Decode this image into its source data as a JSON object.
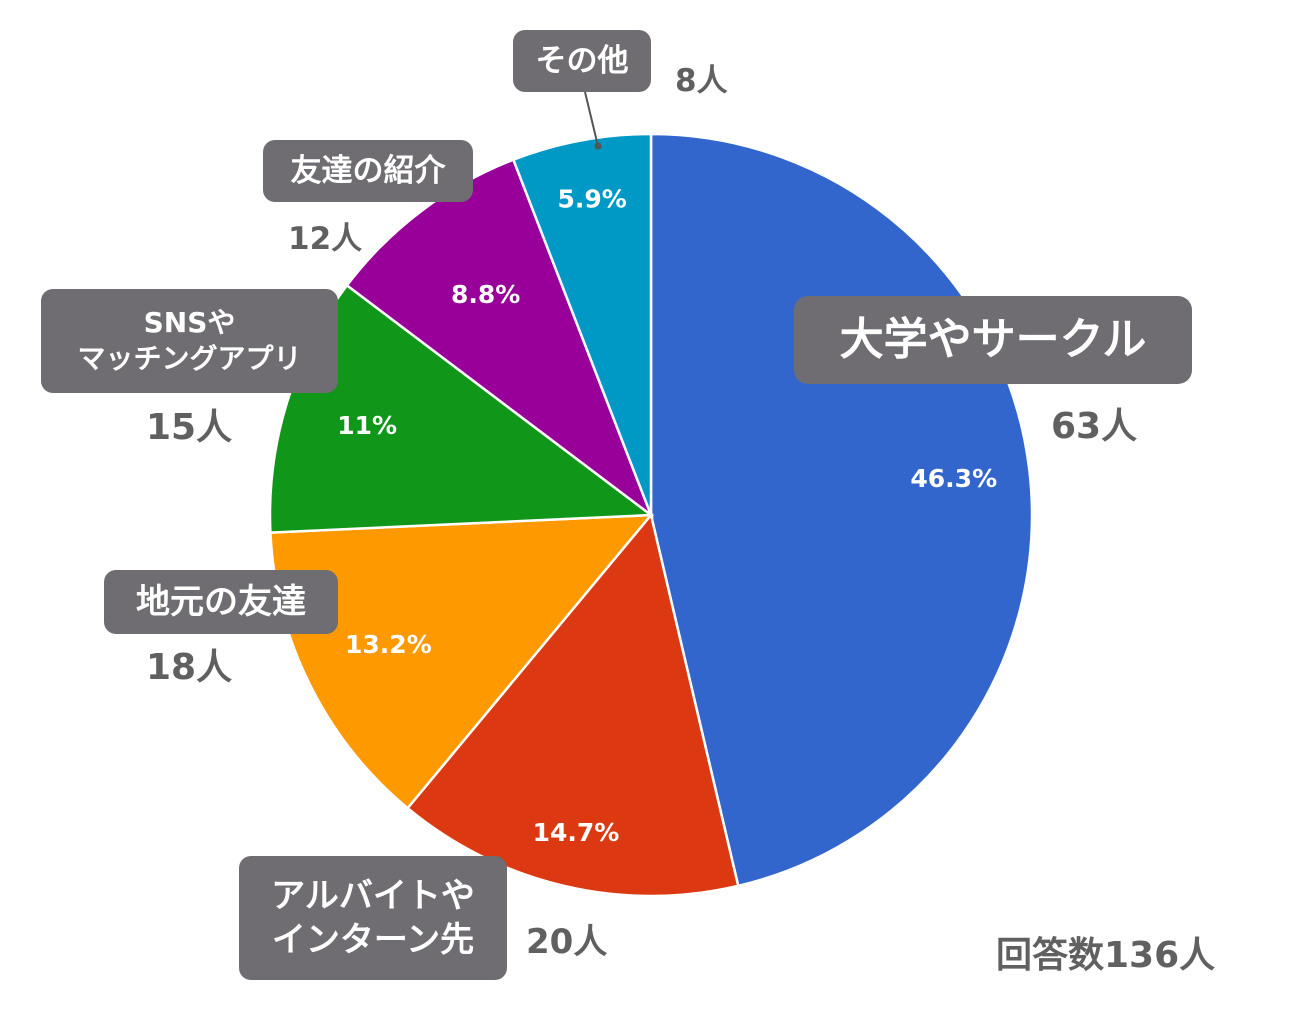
{
  "chart_data": {
    "type": "pie",
    "total_label": "回答数136人",
    "slices": [
      {
        "label": "大学やサークル",
        "count_text": "63人",
        "value": 63,
        "percent_text": "46.3%",
        "color": "#3366cc"
      },
      {
        "label": "アルバイトやインターン先",
        "label_lines": [
          "アルバイトや",
          "インターン先"
        ],
        "count_text": "20人",
        "value": 20,
        "percent_text": "14.7%",
        "color": "#dc3912"
      },
      {
        "label": "地元の友達",
        "count_text": "18人",
        "value": 18,
        "percent_text": "13.2%",
        "color": "#ff9900"
      },
      {
        "label": "SNSやマッチングアプリ",
        "label_lines": [
          "SNSや",
          "マッチングアプリ"
        ],
        "count_text": "15人",
        "value": 15,
        "percent_text": "11%",
        "color": "#109618"
      },
      {
        "label": "友達の紹介",
        "count_text": "12人",
        "value": 12,
        "percent_text": "8.8%",
        "color": "#990099"
      },
      {
        "label": "その他",
        "count_text": "8人",
        "value": 8,
        "percent_text": "5.9%",
        "color": "#0099c6"
      }
    ]
  }
}
